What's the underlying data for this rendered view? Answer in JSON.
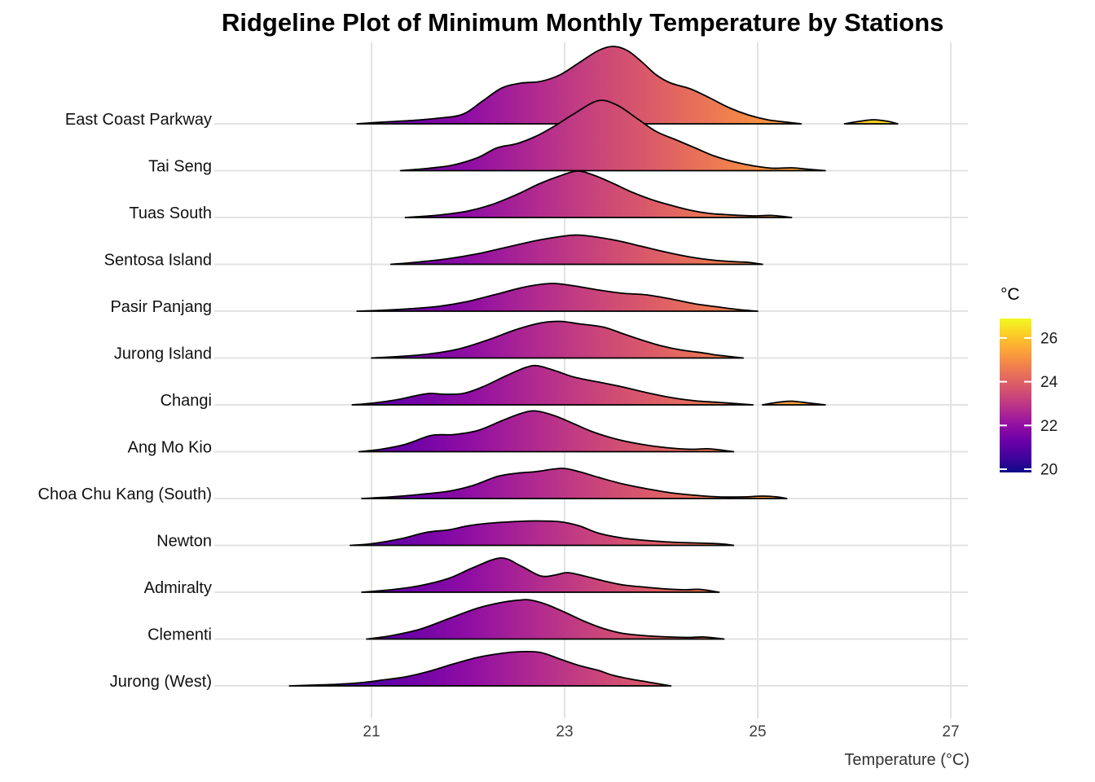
{
  "title": "Ridgeline Plot of Minimum Monthly Temperature by Stations",
  "x_axis": {
    "label": "Temperature (°C)",
    "ticks": [
      "21",
      "23",
      "25",
      "27"
    ],
    "tick_values": [
      21,
      23,
      25,
      27
    ]
  },
  "legend": {
    "title": "°C",
    "tick_labels": [
      "26",
      "24",
      "22",
      "20"
    ],
    "tick_values": [
      26,
      24,
      22,
      20
    ],
    "min": 19.9,
    "max": 26.9
  },
  "colors": {
    "outline": "#000000",
    "gridline": "#e3e3e3",
    "axis_text": "#3d3d3d",
    "station_text": "#111111",
    "legend_text": "#1a1a1a",
    "plasma": [
      [
        0.0,
        "#0d0887"
      ],
      [
        0.1,
        "#41049d"
      ],
      [
        0.2,
        "#6a00a8"
      ],
      [
        0.3,
        "#8f0da4"
      ],
      [
        0.4,
        "#b12a90"
      ],
      [
        0.5,
        "#cc4778"
      ],
      [
        0.6,
        "#e16462"
      ],
      [
        0.7,
        "#f2844b"
      ],
      [
        0.8,
        "#fca636"
      ],
      [
        0.9,
        "#fcce25"
      ],
      [
        1.0,
        "#f0f921"
      ]
    ]
  },
  "chart_data": {
    "type": "area",
    "variant": "ridgeline-density",
    "title": "Ridgeline Plot of Minimum Monthly Temperature by Stations",
    "xlabel": "Temperature (°C)",
    "ylabel": "",
    "xlim": [
      19.4,
      27.2
    ],
    "x_ticks": [
      21,
      23,
      25,
      27
    ],
    "grid": true,
    "colormap": "plasma",
    "color_scale": {
      "label": "°C",
      "min": 19.9,
      "max": 26.9,
      "ticks": [
        26,
        24,
        22,
        20
      ],
      "position": "right"
    },
    "height_unit": "plot px above row baseline (row spacing = 57.5px)",
    "series": [
      {
        "name": "East Coast Parkway",
        "points": [
          [
            20.85,
            0
          ],
          [
            21.1,
            2
          ],
          [
            21.4,
            4
          ],
          [
            21.7,
            7
          ],
          [
            21.95,
            12
          ],
          [
            22.15,
            28
          ],
          [
            22.35,
            44
          ],
          [
            22.55,
            50
          ],
          [
            22.75,
            52
          ],
          [
            22.95,
            60
          ],
          [
            23.15,
            75
          ],
          [
            23.35,
            90
          ],
          [
            23.5,
            95
          ],
          [
            23.65,
            90
          ],
          [
            23.8,
            76
          ],
          [
            23.95,
            60
          ],
          [
            24.1,
            50
          ],
          [
            24.3,
            43
          ],
          [
            24.5,
            32
          ],
          [
            24.7,
            20
          ],
          [
            24.9,
            11
          ],
          [
            25.1,
            5
          ],
          [
            25.3,
            2
          ],
          [
            25.45,
            0
          ]
        ],
        "outlier": [
          [
            25.9,
            0
          ],
          [
            26.05,
            3
          ],
          [
            26.2,
            5
          ],
          [
            26.35,
            3
          ],
          [
            26.45,
            0
          ]
        ]
      },
      {
        "name": "Tai Seng",
        "points": [
          [
            21.3,
            0
          ],
          [
            21.6,
            3
          ],
          [
            21.85,
            7
          ],
          [
            22.1,
            16
          ],
          [
            22.3,
            28
          ],
          [
            22.5,
            33
          ],
          [
            22.7,
            42
          ],
          [
            22.9,
            55
          ],
          [
            23.1,
            70
          ],
          [
            23.35,
            86
          ],
          [
            23.55,
            80
          ],
          [
            23.75,
            64
          ],
          [
            23.95,
            48
          ],
          [
            24.15,
            38
          ],
          [
            24.35,
            28
          ],
          [
            24.55,
            18
          ],
          [
            24.75,
            11
          ],
          [
            24.95,
            6
          ],
          [
            25.15,
            3
          ],
          [
            25.35,
            3.5
          ],
          [
            25.5,
            2
          ],
          [
            25.7,
            0
          ]
        ]
      },
      {
        "name": "Tuas South",
        "points": [
          [
            21.35,
            0
          ],
          [
            21.7,
            3
          ],
          [
            22.0,
            8
          ],
          [
            22.25,
            16
          ],
          [
            22.5,
            28
          ],
          [
            22.75,
            42
          ],
          [
            22.95,
            51
          ],
          [
            23.13,
            57
          ],
          [
            23.3,
            52
          ],
          [
            23.5,
            42
          ],
          [
            23.7,
            31
          ],
          [
            23.9,
            22
          ],
          [
            24.1,
            15
          ],
          [
            24.3,
            9
          ],
          [
            24.5,
            5
          ],
          [
            24.75,
            3
          ],
          [
            24.95,
            2
          ],
          [
            25.15,
            2.5
          ],
          [
            25.35,
            0
          ]
        ]
      },
      {
        "name": "Sentosa Island",
        "points": [
          [
            21.2,
            0
          ],
          [
            21.5,
            3
          ],
          [
            21.8,
            7
          ],
          [
            22.1,
            13
          ],
          [
            22.4,
            21
          ],
          [
            22.7,
            29
          ],
          [
            22.95,
            34
          ],
          [
            23.12,
            36
          ],
          [
            23.3,
            34
          ],
          [
            23.55,
            29
          ],
          [
            23.8,
            22
          ],
          [
            24.05,
            15
          ],
          [
            24.3,
            9
          ],
          [
            24.55,
            5
          ],
          [
            24.8,
            3
          ],
          [
            24.9,
            2.5
          ],
          [
            25.05,
            0
          ]
        ]
      },
      {
        "name": "Pasir Panjang",
        "points": [
          [
            20.85,
            0
          ],
          [
            21.1,
            1
          ],
          [
            21.4,
            3
          ],
          [
            21.7,
            6
          ],
          [
            22.0,
            12
          ],
          [
            22.3,
            21
          ],
          [
            22.6,
            30
          ],
          [
            22.87,
            34
          ],
          [
            23.1,
            31
          ],
          [
            23.35,
            26
          ],
          [
            23.6,
            22
          ],
          [
            23.85,
            20
          ],
          [
            24.1,
            15
          ],
          [
            24.35,
            9
          ],
          [
            24.6,
            5
          ],
          [
            24.8,
            2
          ],
          [
            25.0,
            0
          ]
        ]
      },
      {
        "name": "Jurong Island",
        "points": [
          [
            21.0,
            0
          ],
          [
            21.3,
            2
          ],
          [
            21.6,
            5
          ],
          [
            21.9,
            11
          ],
          [
            22.2,
            22
          ],
          [
            22.5,
            35
          ],
          [
            22.75,
            43
          ],
          [
            22.95,
            45
          ],
          [
            23.15,
            42
          ],
          [
            23.4,
            38
          ],
          [
            23.6,
            30
          ],
          [
            23.8,
            22
          ],
          [
            24.0,
            15
          ],
          [
            24.2,
            10
          ],
          [
            24.45,
            6
          ],
          [
            24.55,
            4
          ],
          [
            24.7,
            2
          ],
          [
            24.85,
            0
          ]
        ]
      },
      {
        "name": "Changi",
        "points": [
          [
            20.8,
            0
          ],
          [
            21.0,
            2
          ],
          [
            21.25,
            6
          ],
          [
            21.45,
            11
          ],
          [
            21.6,
            14
          ],
          [
            21.75,
            13
          ],
          [
            21.95,
            14
          ],
          [
            22.15,
            22
          ],
          [
            22.4,
            36
          ],
          [
            22.6,
            46
          ],
          [
            22.72,
            48
          ],
          [
            22.9,
            42
          ],
          [
            23.1,
            34
          ],
          [
            23.35,
            28
          ],
          [
            23.6,
            22
          ],
          [
            23.85,
            15
          ],
          [
            24.1,
            9
          ],
          [
            24.35,
            5
          ],
          [
            24.6,
            3
          ],
          [
            24.95,
            0
          ]
        ],
        "outlier": [
          [
            25.05,
            0
          ],
          [
            25.2,
            3
          ],
          [
            25.35,
            4.5
          ],
          [
            25.55,
            2
          ],
          [
            25.7,
            0
          ]
        ]
      },
      {
        "name": "Ang Mo Kio",
        "points": [
          [
            20.87,
            0
          ],
          [
            21.1,
            3
          ],
          [
            21.35,
            9
          ],
          [
            21.62,
            20
          ],
          [
            21.85,
            21
          ],
          [
            22.1,
            26
          ],
          [
            22.35,
            38
          ],
          [
            22.55,
            47
          ],
          [
            22.7,
            50
          ],
          [
            22.9,
            44
          ],
          [
            23.1,
            34
          ],
          [
            23.3,
            24
          ],
          [
            23.55,
            15
          ],
          [
            23.8,
            9
          ],
          [
            24.05,
            5
          ],
          [
            24.3,
            3
          ],
          [
            24.5,
            3.5
          ],
          [
            24.75,
            0
          ]
        ]
      },
      {
        "name": "Choa Chu Kang (South)",
        "points": [
          [
            20.9,
            0
          ],
          [
            21.2,
            2
          ],
          [
            21.5,
            5
          ],
          [
            21.8,
            9
          ],
          [
            22.05,
            16
          ],
          [
            22.3,
            27
          ],
          [
            22.5,
            31
          ],
          [
            22.7,
            33
          ],
          [
            22.97,
            37
          ],
          [
            23.15,
            33
          ],
          [
            23.35,
            26
          ],
          [
            23.6,
            18
          ],
          [
            23.85,
            12
          ],
          [
            24.1,
            7
          ],
          [
            24.35,
            4
          ],
          [
            24.6,
            2
          ],
          [
            24.85,
            2
          ],
          [
            25.05,
            3
          ],
          [
            25.2,
            2
          ],
          [
            25.3,
            0
          ]
        ]
      },
      {
        "name": "Newton",
        "points": [
          [
            20.78,
            0
          ],
          [
            21.0,
            2
          ],
          [
            21.3,
            8
          ],
          [
            21.57,
            16
          ],
          [
            21.8,
            19
          ],
          [
            22.0,
            24
          ],
          [
            22.2,
            27
          ],
          [
            22.45,
            29
          ],
          [
            22.7,
            30
          ],
          [
            22.95,
            29
          ],
          [
            23.15,
            24
          ],
          [
            23.35,
            15
          ],
          [
            23.6,
            9
          ],
          [
            23.85,
            6
          ],
          [
            24.1,
            4
          ],
          [
            24.35,
            3
          ],
          [
            24.6,
            2
          ],
          [
            24.75,
            0
          ]
        ]
      },
      {
        "name": "Admiralty",
        "points": [
          [
            20.9,
            0
          ],
          [
            21.2,
            3
          ],
          [
            21.5,
            8
          ],
          [
            21.8,
            17
          ],
          [
            22.05,
            30
          ],
          [
            22.34,
            42
          ],
          [
            22.55,
            32
          ],
          [
            22.75,
            20
          ],
          [
            22.9,
            21
          ],
          [
            23.03,
            24
          ],
          [
            23.2,
            20
          ],
          [
            23.4,
            14
          ],
          [
            23.6,
            9
          ],
          [
            23.85,
            6
          ],
          [
            24.05,
            4
          ],
          [
            24.25,
            3
          ],
          [
            24.4,
            3.5
          ],
          [
            24.6,
            0
          ]
        ]
      },
      {
        "name": "Clementi",
        "points": [
          [
            20.95,
            0
          ],
          [
            21.2,
            4
          ],
          [
            21.5,
            12
          ],
          [
            21.8,
            25
          ],
          [
            22.1,
            38
          ],
          [
            22.35,
            45
          ],
          [
            22.55,
            48
          ],
          [
            22.64,
            48
          ],
          [
            22.8,
            43
          ],
          [
            23.0,
            33
          ],
          [
            23.2,
            22
          ],
          [
            23.4,
            13
          ],
          [
            23.6,
            7
          ],
          [
            23.85,
            4
          ],
          [
            24.1,
            2.5
          ],
          [
            24.3,
            2
          ],
          [
            24.45,
            2.5
          ],
          [
            24.65,
            0
          ]
        ]
      },
      {
        "name": "Jurong (West)",
        "points": [
          [
            20.15,
            0
          ],
          [
            20.4,
            1
          ],
          [
            20.65,
            2
          ],
          [
            20.9,
            4
          ],
          [
            21.1,
            7
          ],
          [
            21.35,
            11
          ],
          [
            21.6,
            18
          ],
          [
            21.85,
            27
          ],
          [
            22.1,
            35
          ],
          [
            22.35,
            40
          ],
          [
            22.55,
            42
          ],
          [
            22.75,
            41
          ],
          [
            22.95,
            33
          ],
          [
            23.15,
            25
          ],
          [
            23.35,
            19
          ],
          [
            23.5,
            13
          ],
          [
            23.7,
            8
          ],
          [
            23.85,
            5
          ],
          [
            24.0,
            2
          ],
          [
            24.1,
            0
          ]
        ]
      }
    ]
  }
}
